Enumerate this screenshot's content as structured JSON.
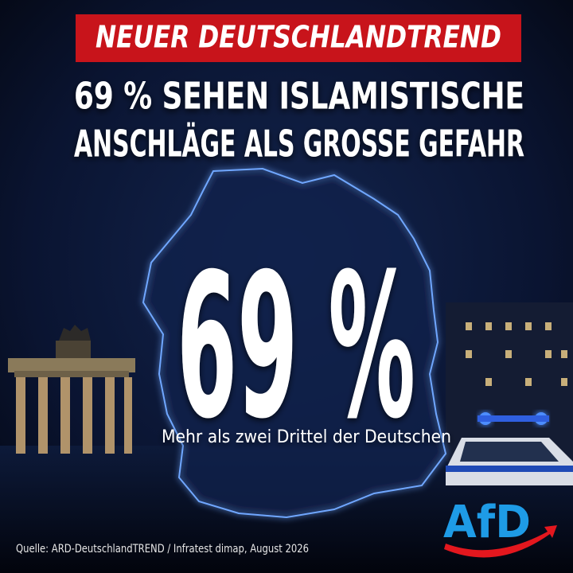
{
  "banner": "NEUER DEUTSCHLANDTREND",
  "headline": [
    "69 % SEHEN ISLAMISTISCHE",
    "ANSCHLÄGE ALS GROSSE GEFAHR"
  ],
  "stat": "69 %",
  "stat_caption": "Mehr als zwei Drittel der Deutschen",
  "source": "Quelle: ARD-DeutschlandTREND / Infratest dimap, August 2026",
  "logo": "AfD"
}
